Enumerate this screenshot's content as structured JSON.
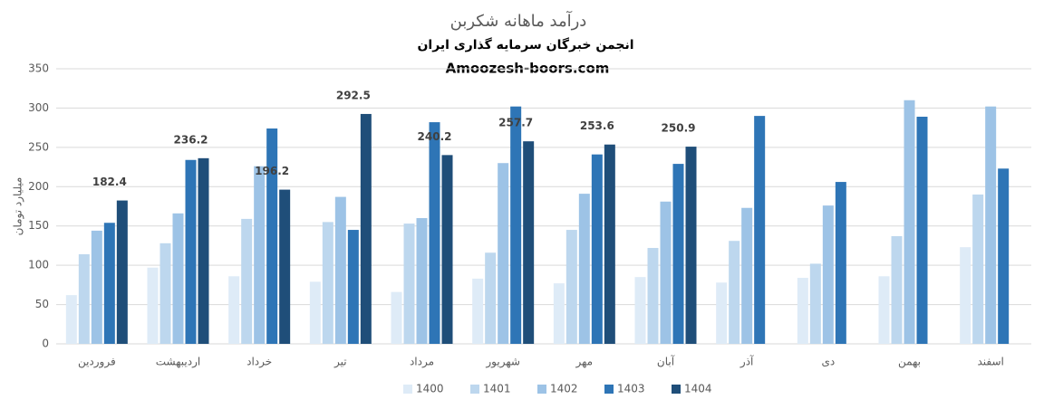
{
  "chart_data": {
    "type": "bar",
    "title": "درآمد ماهانه شکربن",
    "subtitle": "انجمن خبرگان سرمایه گذاری ایران",
    "annotation": "Amoozesh-boors.com",
    "y_label": "میلیارد تومان",
    "categories": [
      "فروردین",
      "اردیبهشت",
      "خرداد",
      "تیر",
      "مرداد",
      "شهریور",
      "مهر",
      "آبان",
      "آذر",
      "دی",
      "بهمن",
      "اسفند"
    ],
    "series": [
      {
        "name": "1400",
        "color": "#deebf7",
        "values": [
          62,
          97,
          86,
          79,
          66,
          83,
          77,
          85,
          78,
          84,
          86,
          123
        ]
      },
      {
        "name": "1401",
        "color": "#bdd7ee",
        "values": [
          114,
          128,
          159,
          155,
          153,
          116,
          145,
          122,
          131,
          102,
          137,
          190
        ]
      },
      {
        "name": "1402",
        "color": "#9dc3e6",
        "values": [
          144,
          166,
          226,
          187,
          160,
          230,
          191,
          181,
          173,
          176,
          310,
          302
        ]
      },
      {
        "name": "1403",
        "color": "#2e75b6",
        "values": [
          154,
          234,
          274,
          145,
          282,
          302,
          241,
          229,
          290,
          206,
          289,
          223
        ]
      },
      {
        "name": "1404",
        "color": "#1f4e79",
        "values": [
          182.4,
          236.2,
          196.2,
          292.5,
          240.2,
          257.7,
          253.6,
          250.9,
          null,
          null,
          null,
          null
        ],
        "data_labels": true
      }
    ],
    "ylim": [
      0,
      350
    ],
    "yticks": [
      0,
      50,
      100,
      150,
      200,
      250,
      300,
      350
    ],
    "grid": true,
    "legend": "bottom"
  }
}
